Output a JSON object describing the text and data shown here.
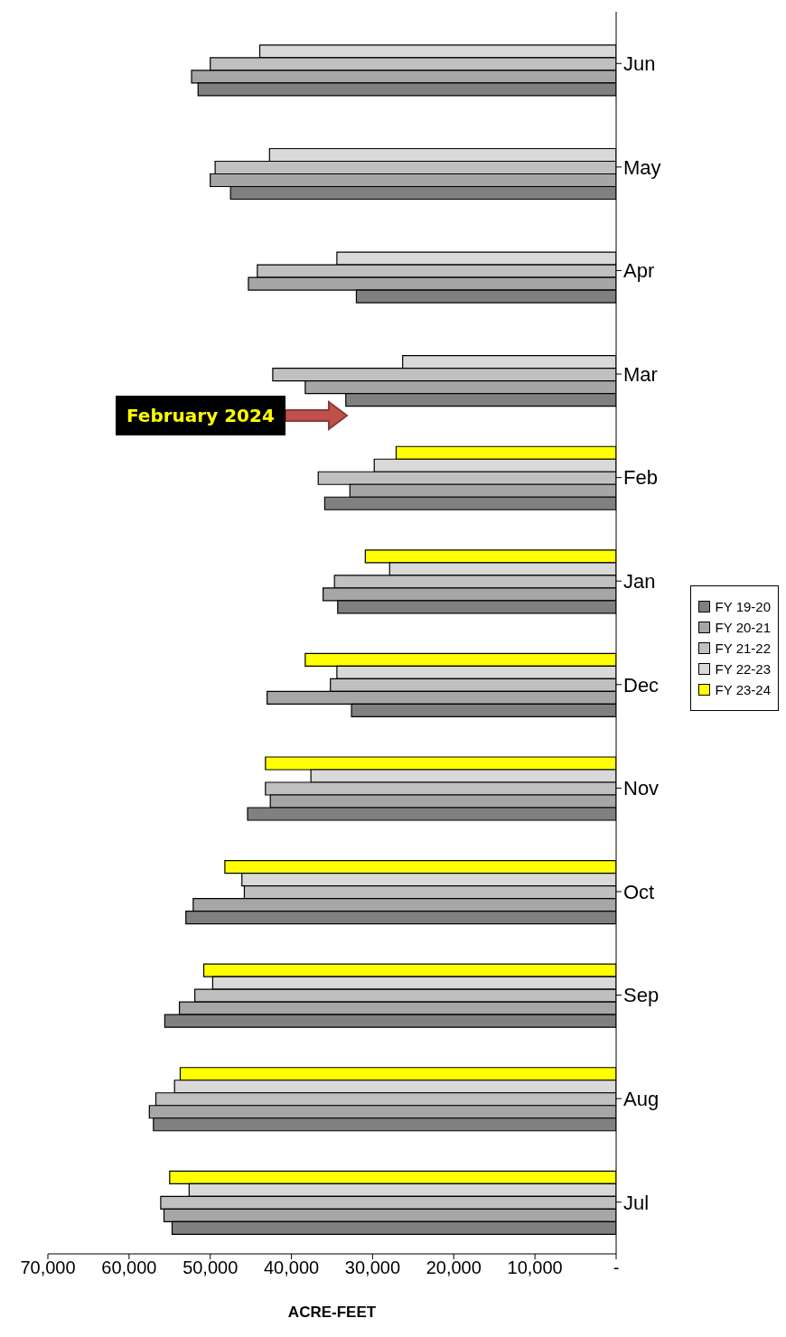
{
  "chart_data": {
    "type": "bar",
    "orientation": "horizontal",
    "xlabel": "ACRE-FEET",
    "categories": [
      "Jun",
      "May",
      "Apr",
      "Mar",
      "Feb",
      "Jan",
      "Dec",
      "Nov",
      "Oct",
      "Sep",
      "Aug",
      "Jul"
    ],
    "series": [
      {
        "name": "FY 19-20",
        "color": "#808080",
        "values": [
          51500,
          47500,
          32000,
          33300,
          35900,
          34300,
          32600,
          45400,
          53000,
          55600,
          57000,
          54700
        ]
      },
      {
        "name": "FY 20-21",
        "color": "#a6a6a6",
        "values": [
          52300,
          50000,
          45300,
          38300,
          32800,
          36100,
          43000,
          42600,
          52100,
          53800,
          57500,
          55700
        ]
      },
      {
        "name": "FY 21-22",
        "color": "#c0c0c0",
        "values": [
          50000,
          49400,
          44200,
          42300,
          36700,
          34700,
          35200,
          43200,
          45800,
          51900,
          56700,
          56100
        ]
      },
      {
        "name": "FY 22-23",
        "color": "#d9d9d9",
        "values": [
          43900,
          42700,
          34400,
          26300,
          29800,
          27900,
          34400,
          37600,
          46100,
          49700,
          54400,
          52600
        ]
      },
      {
        "name": "FY 23-24",
        "color": "#ffff00",
        "values": [
          null,
          null,
          null,
          null,
          27100,
          30900,
          38300,
          43200,
          48200,
          50800,
          53700,
          55000
        ]
      }
    ],
    "xlim": [
      70000,
      0
    ],
    "xticks": [
      {
        "value": 70000,
        "label": "70,000"
      },
      {
        "value": 60000,
        "label": "60,000"
      },
      {
        "value": 50000,
        "label": "50,000"
      },
      {
        "value": 40000,
        "label": "40,000"
      },
      {
        "value": 30000,
        "label": "30,000"
      },
      {
        "value": 20000,
        "label": "20,000"
      },
      {
        "value": 10000,
        "label": "10,000"
      },
      {
        "value": 0,
        "label": "-"
      }
    ],
    "legend": "right",
    "grid": false,
    "annotations": [
      "February 2024"
    ]
  }
}
